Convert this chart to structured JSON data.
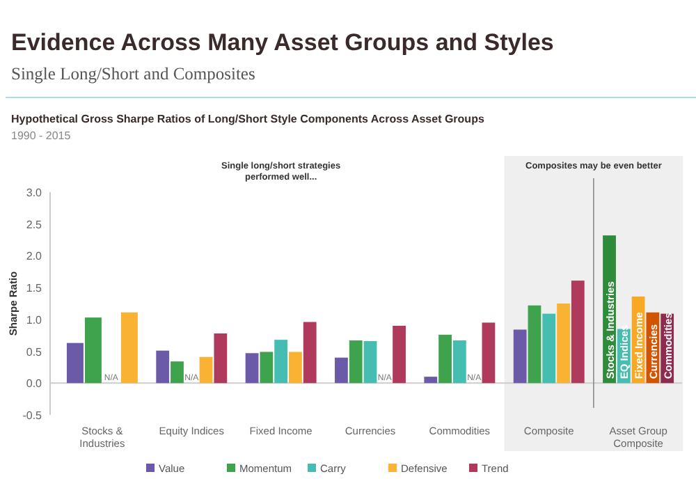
{
  "chart_data": {
    "type": "bar",
    "title": "Evidence Across Many Asset Groups and Styles",
    "subtitle": "Single Long/Short and Composites",
    "ylabel": "Sharpe Ratio",
    "annotations": [
      "Hypothetical Gross Sharpe Ratios of Long/Short Style Components Across Asset Groups",
      "1990 - 2015",
      "Single long/short strategies\nperformed well...",
      "Composites may be even better"
    ],
    "categories": [
      "Stocks & Industries",
      "Equity Indices",
      "Fixed Income",
      "Currencies",
      "Commodities",
      "Composite",
      "Asset Group Composite"
    ],
    "series": [
      {
        "name": "Value",
        "color": "#6a5aa8",
        "values": [
          0.63,
          0.51,
          0.47,
          0.4,
          0.1,
          0.84,
          null
        ]
      },
      {
        "name": "Momentum",
        "color": "#3fa34d",
        "values": [
          1.03,
          0.34,
          0.49,
          0.67,
          0.76,
          1.22,
          null
        ]
      },
      {
        "name": "Carry",
        "color": "#45bdb0",
        "values": [
          null,
          null,
          0.68,
          0.66,
          0.67,
          1.09,
          null
        ],
        "value_labels": [
          "N/A",
          "N/A",
          null,
          null,
          null,
          null,
          null
        ]
      },
      {
        "name": "Defensive",
        "color": "#f9b233",
        "values": [
          1.11,
          0.41,
          0.49,
          null,
          null,
          1.25,
          null
        ],
        "value_labels": [
          null,
          null,
          null,
          "N/A",
          "N/A",
          null,
          null
        ]
      },
      {
        "name": "Trend",
        "color": "#b03a5c",
        "values": [
          null,
          0.78,
          0.96,
          0.9,
          0.95,
          1.61,
          null
        ]
      },
      {
        "name": "Stocks & Industries",
        "color": "#2e8b3a",
        "values": [
          null,
          null,
          null,
          null,
          null,
          null,
          2.32
        ]
      },
      {
        "name": "EQ Indices",
        "color": "#45bdb0",
        "values": [
          null,
          null,
          null,
          null,
          null,
          null,
          0.85
        ]
      },
      {
        "name": "Fixed Income",
        "color": "#f9a825",
        "values": [
          null,
          null,
          null,
          null,
          null,
          null,
          1.36
        ]
      },
      {
        "name": "Currencies",
        "color": "#d35400",
        "values": [
          null,
          null,
          null,
          null,
          null,
          null,
          1.11
        ]
      },
      {
        "name": "Commodities",
        "color": "#8e2b4f",
        "values": [
          null,
          null,
          null,
          null,
          null,
          null,
          1.09
        ]
      }
    ],
    "ylim": [
      -0.5,
      3
    ],
    "yticks": [
      {
        "value": -0.5,
        "label": "-0.5"
      },
      {
        "value": 0,
        "label": "0.0"
      },
      {
        "value": 0.5,
        "label": "0.5"
      },
      {
        "value": 1,
        "label": "1.0"
      },
      {
        "value": 1.5,
        "label": "1.5"
      },
      {
        "value": 2,
        "label": "2.0"
      },
      {
        "value": 2.5,
        "label": "2.5"
      },
      {
        "value": 3,
        "label": "3.0"
      }
    ],
    "bands": [
      {
        "axis": "x",
        "from": "Composite",
        "to": "Asset Group Composite",
        "color": "#efefef"
      }
    ],
    "ref_lines": [
      {
        "axis": "y",
        "value": 0,
        "color": "#cccccc"
      },
      {
        "axis": "x",
        "value": "Asset Group Composite",
        "color": "#888888"
      }
    ],
    "grid": false,
    "legend": "bottom"
  }
}
